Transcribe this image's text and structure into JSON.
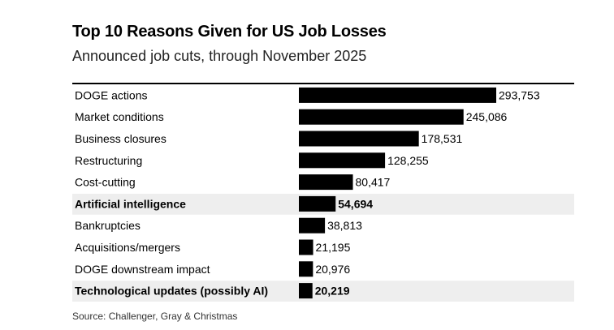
{
  "chart_data": {
    "type": "bar",
    "orientation": "horizontal",
    "title": "Top 10 Reasons Given for US Job Losses",
    "subtitle": "Announced job cuts, through November 2025",
    "source": "Source: Challenger, Gray & Christmas",
    "xlabel": "",
    "ylabel": "",
    "xlim": [
      0,
      293753
    ],
    "grid": false,
    "legend": "none",
    "categories": [
      "DOGE actions",
      "Market conditions",
      "Business closures",
      "Restructuring",
      "Cost-cutting",
      "Artificial intelligence",
      "Bankruptcies",
      "Acquisitions/mergers",
      "DOGE downstream impact",
      "Technological updates (possibly AI)"
    ],
    "values": [
      293753,
      245086,
      178531,
      128255,
      80417,
      54694,
      38813,
      21195,
      20976,
      20219
    ],
    "value_labels": [
      "293,753",
      "245,086",
      "178,531",
      "128,255",
      "80,417",
      "54,694",
      "38,813",
      "21,195",
      "20,976",
      "20,219"
    ],
    "highlighted": [
      false,
      false,
      false,
      false,
      false,
      true,
      false,
      false,
      false,
      true
    ],
    "colors": {
      "bar": "#000000",
      "highlight_row": "#eeeeee",
      "text": "#000000"
    }
  }
}
